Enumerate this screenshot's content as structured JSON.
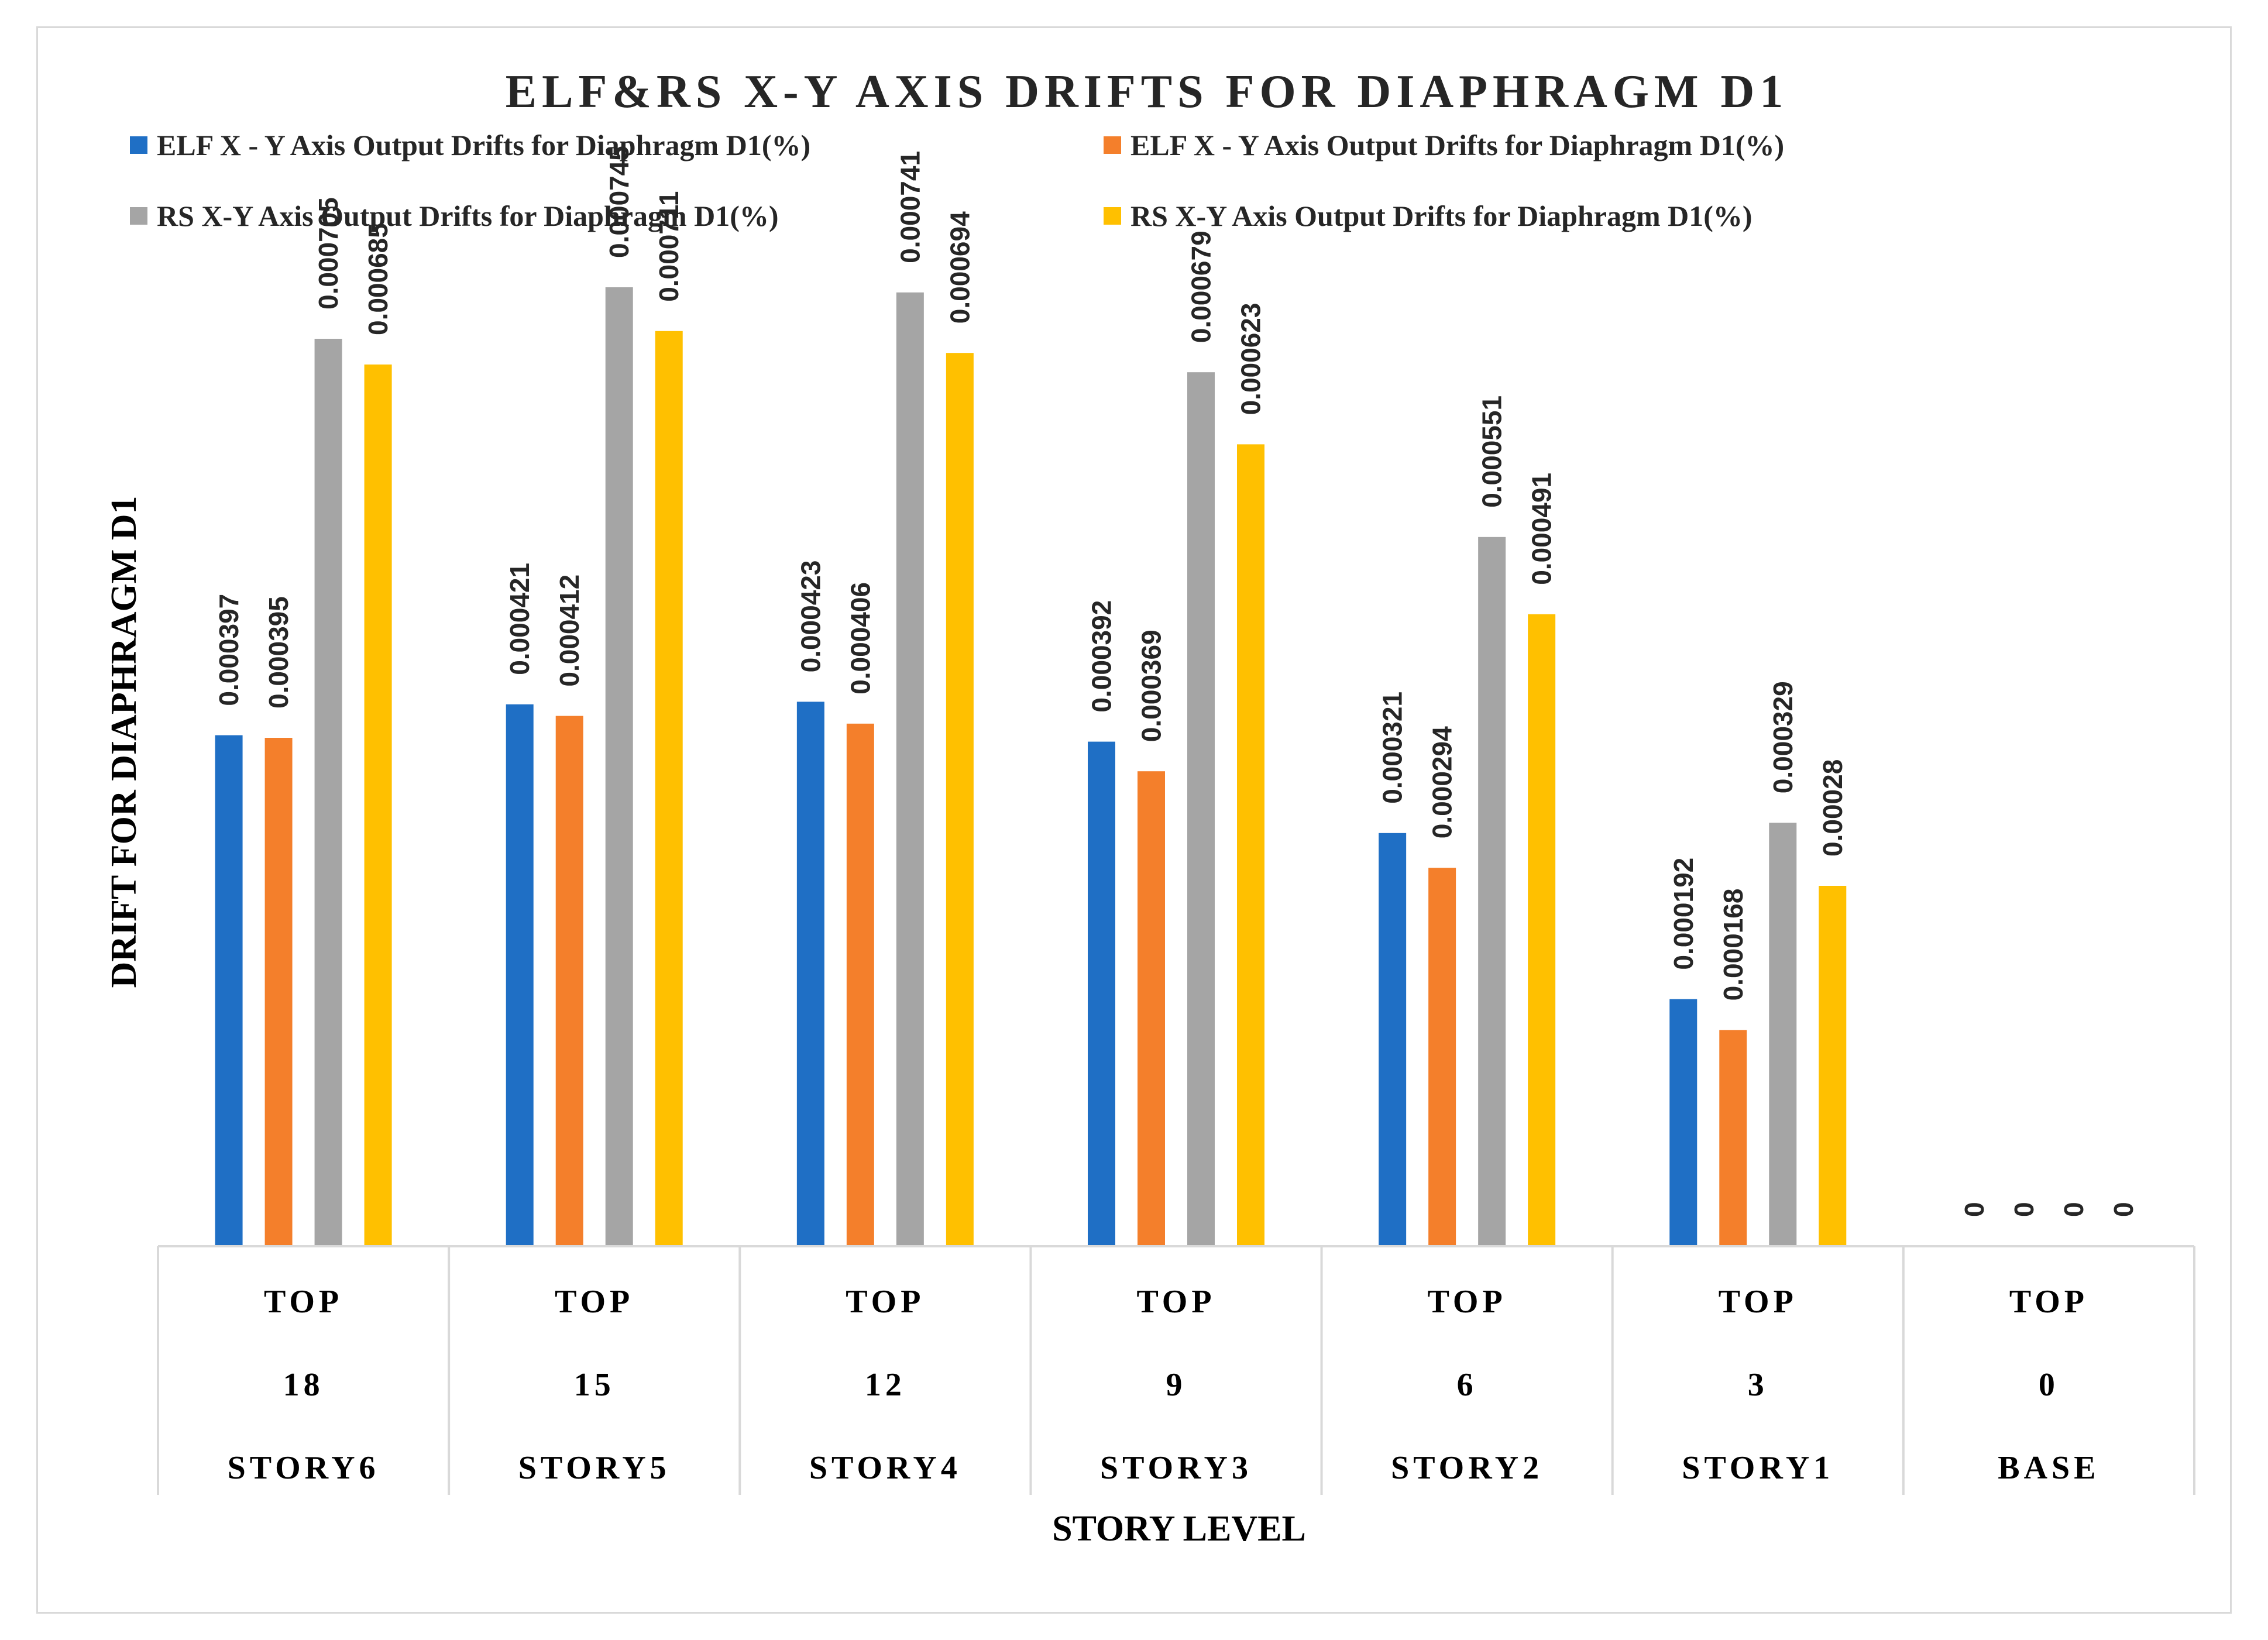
{
  "chart_data": {
    "type": "bar",
    "title": "ELF&RS X-Y AXIS DRIFTS FOR DIAPHRAGM D1",
    "xlabel": "STORY LEVEL",
    "ylabel": "DRIFT FOR DIAPHRAGM D1",
    "ylim": [
      0,
      0.00085
    ],
    "grid": false,
    "legend_position": "top",
    "category_levels": [
      [
        "TOP",
        "TOP",
        "TOP",
        "TOP",
        "TOP",
        "TOP",
        "TOP"
      ],
      [
        "18",
        "15",
        "12",
        "9",
        "6",
        "3",
        "0"
      ],
      [
        "STORY6",
        "STORY5",
        "STORY4",
        "STORY3",
        "STORY2",
        "STORY1",
        "BASE"
      ]
    ],
    "series": [
      {
        "name": "ELF X - Y Axis Output Drifts for Diaphragm D1(%)",
        "color": "#1f6fc5",
        "values": [
          0.000397,
          0.000421,
          0.000423,
          0.000392,
          0.000321,
          0.000192,
          0
        ],
        "labels": [
          "0.000397",
          "0.000421",
          "0.000423",
          "0.000392",
          "0.000321",
          "0.000192",
          "0"
        ]
      },
      {
        "name": "ELF X - Y Axis Output Drifts for Diaphragm D1(%)",
        "color": "#f47f2b",
        "values": [
          0.000395,
          0.000412,
          0.000406,
          0.000369,
          0.000294,
          0.000168,
          0
        ],
        "labels": [
          "0.000395",
          "0.000412",
          "0.000406",
          "0.000369",
          "0.000294",
          "0.000168",
          "0"
        ]
      },
      {
        "name": "RS X-Y Axis Output Drifts for Diaphragm D1(%)",
        "color": "#a5a5a5",
        "values": [
          0.000705,
          0.000745,
          0.000741,
          0.000679,
          0.000551,
          0.000329,
          0
        ],
        "labels": [
          "0.000705",
          "0.000745",
          "0.000741",
          "0.000679",
          "0.000551",
          "0.000329",
          "0"
        ]
      },
      {
        "name": "RS X-Y Axis Output Drifts for Diaphragm D1(%)",
        "color": "#ffc000",
        "values": [
          0.000685,
          0.000711,
          0.000694,
          0.000623,
          0.000491,
          0.00028,
          0
        ],
        "labels": [
          "0.000685",
          "0.000711",
          "0.000694",
          "0.000623",
          "0.000491",
          "0.00028",
          "0"
        ]
      }
    ]
  }
}
